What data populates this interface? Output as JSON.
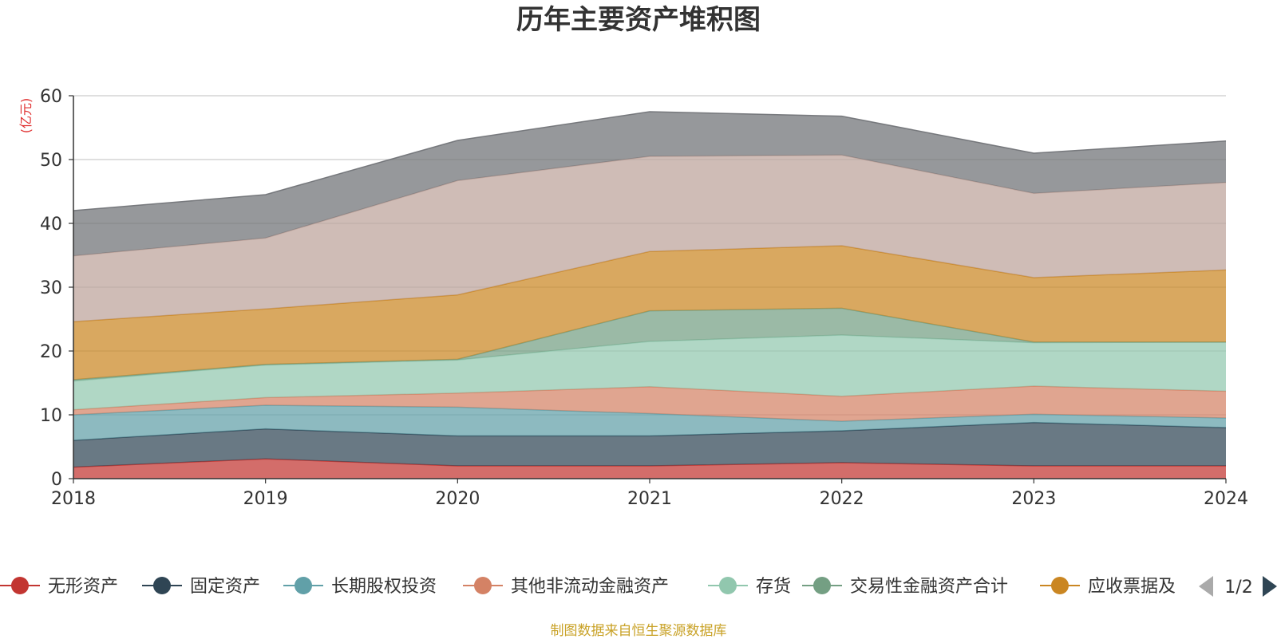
{
  "title": "历年主要资产堆积图",
  "y_unit": "(亿元)",
  "source": "制图数据来自恒生聚源数据库",
  "legend": {
    "items": [
      {
        "label": "无形资产",
        "color": "#c23531"
      },
      {
        "label": "固定资产",
        "color": "#2f4554"
      },
      {
        "label": "长期股权投资",
        "color": "#61a0a8"
      },
      {
        "label": "其他非流动金融资产",
        "color": "#d48265"
      },
      {
        "label": "存货",
        "color": "#91c7ae"
      },
      {
        "label": "交易性金融资产合计",
        "color": "#749f83"
      },
      {
        "label": "应收票据及",
        "color": "#ca8622"
      }
    ],
    "page": "1/2"
  },
  "colors": {
    "source_text": "#c9a227",
    "unit_text": "#e03030",
    "grid": "#cccccc",
    "axis": "#333333"
  },
  "chart_data": {
    "type": "area",
    "stacked": true,
    "x": [
      "2018",
      "2019",
      "2020",
      "2021",
      "2022",
      "2023",
      "2024"
    ],
    "ylim": [
      0,
      60
    ],
    "yticks": [
      0,
      10,
      20,
      30,
      40,
      50,
      60
    ],
    "ylabel": "(亿元)",
    "grid": true,
    "legend_position": "bottom",
    "series": [
      {
        "name": "无形资产",
        "color": "#c23531",
        "values": [
          1.8,
          3.1,
          2.0,
          2.0,
          2.5,
          2.0,
          2.0
        ]
      },
      {
        "name": "固定资产",
        "color": "#2f4554",
        "values": [
          4.2,
          4.7,
          4.7,
          4.7,
          5.0,
          6.8,
          6.0
        ]
      },
      {
        "name": "长期股权投资",
        "color": "#61a0a8",
        "values": [
          4.0,
          3.7,
          4.5,
          3.5,
          1.5,
          1.3,
          1.5
        ]
      },
      {
        "name": "其他非流动金融资产",
        "color": "#d48265",
        "values": [
          0.8,
          1.2,
          2.2,
          4.2,
          3.9,
          4.4,
          4.2
        ]
      },
      {
        "name": "存货",
        "color": "#91c7ae",
        "values": [
          4.5,
          5.1,
          5.2,
          7.1,
          9.6,
          6.8,
          7.7
        ]
      },
      {
        "name": "交易性金融资产合计",
        "color": "#749f83",
        "values": [
          0.2,
          0.1,
          0.1,
          4.8,
          4.2,
          0.1,
          0.0
        ]
      },
      {
        "name": "应收票据及应收账款",
        "color": "#ca8622",
        "values": [
          9.1,
          8.7,
          10.1,
          9.3,
          9.8,
          10.1,
          11.3
        ]
      },
      {
        "name": "",
        "color": "#bda29a",
        "values": [
          10.3,
          11.1,
          17.9,
          14.9,
          14.2,
          13.2,
          13.7
        ]
      },
      {
        "name": "",
        "color": "#6e7074",
        "values": [
          7.1,
          6.8,
          6.3,
          7.0,
          6.1,
          6.3,
          6.5
        ]
      }
    ]
  }
}
